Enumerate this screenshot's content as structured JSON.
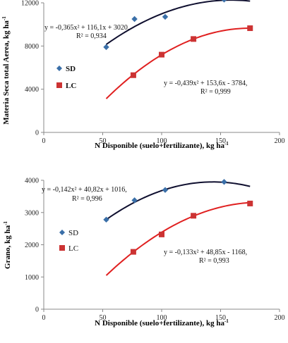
{
  "chart_data": [
    {
      "type": "scatter",
      "xlabel": "N Disponible (suelo+fertilizante), kg ha",
      "xlabel_sup": "-1",
      "ylabel": "Materia Seca total Aerea, kg ha",
      "ylabel_sup": "-1",
      "xlim": [
        0,
        200
      ],
      "ylim": [
        0,
        12000
      ],
      "x_ticks": [
        0,
        50,
        100,
        150,
        200
      ],
      "y_ticks": [
        0,
        4000,
        8000,
        12000
      ],
      "grid": false,
      "legend_bold": true,
      "series": [
        {
          "name": "SD",
          "marker": "diamond",
          "color": "#3A6FA8",
          "line_color": "#0F0F2F",
          "x": [
            53,
            77,
            103,
            153
          ],
          "y": [
            7900,
            10500,
            10700,
            12300
          ],
          "fit": {
            "a": -0.365,
            "b": 116.1,
            "c": 3020,
            "x_range": [
              53,
              175
            ]
          },
          "equation": "y = -0,365x² + 116,1x + 3020,",
          "r2": "R² = 0,934"
        },
        {
          "name": "LC",
          "marker": "square",
          "color": "#CC3333",
          "line_color": "#E02020",
          "x": [
            76,
            100,
            127,
            175
          ],
          "y": [
            5300,
            7200,
            8650,
            9650
          ],
          "fit": {
            "a": -0.439,
            "b": 153.6,
            "c": -3784,
            "x_range": [
              53,
              175
            ]
          },
          "equation": "y = -0,439x² + 153,6x - 3784,",
          "r2": "R² = 0,999"
        }
      ]
    },
    {
      "type": "scatter",
      "xlabel": "N Disponible (suelo+fertilizante), kg ha",
      "xlabel_sup": "-1",
      "ylabel": "Grano, kg ha",
      "ylabel_sup": "-1",
      "xlim": [
        0,
        200
      ],
      "ylim": [
        0,
        4000
      ],
      "x_ticks": [
        0,
        50,
        100,
        150,
        200
      ],
      "y_ticks": [
        0,
        1000,
        2000,
        3000,
        4000
      ],
      "grid": false,
      "legend_bold": false,
      "series": [
        {
          "name": "SD",
          "marker": "diamond",
          "color": "#3A6FA8",
          "line_color": "#0F0F2F",
          "x": [
            53,
            77,
            103,
            153
          ],
          "y": [
            2780,
            3380,
            3700,
            3950
          ],
          "fit": {
            "a": -0.142,
            "b": 40.82,
            "c": 1016,
            "x_range": [
              53,
              175
            ]
          },
          "equation": "y = -0,142x² + 40,82x + 1016,",
          "r2": "R² = 0,996"
        },
        {
          "name": "LC",
          "marker": "square",
          "color": "#CC3333",
          "line_color": "#E02020",
          "x": [
            76,
            100,
            127,
            175
          ],
          "y": [
            1780,
            2320,
            2900,
            3280
          ],
          "fit": {
            "a": -0.133,
            "b": 48.85,
            "c": -1168,
            "x_range": [
              53,
              175
            ]
          },
          "equation": "y = -0,133x² + 48,85x - 1168,",
          "r2": "R² = 0,993"
        }
      ]
    }
  ]
}
